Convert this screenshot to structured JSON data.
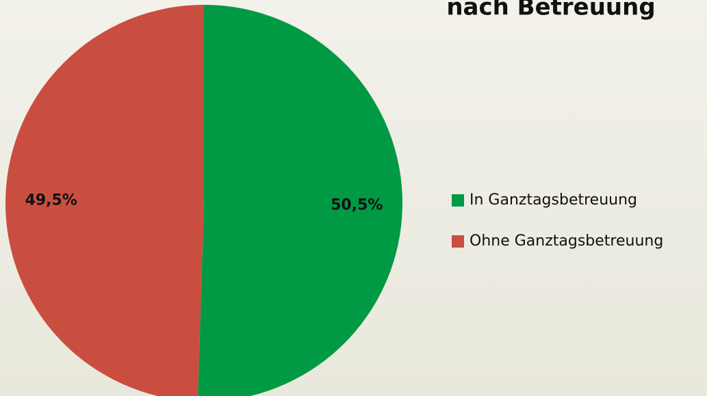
{
  "chart_data": {
    "type": "pie",
    "title": "nach Betreuung",
    "categories": [
      "In Ganztagsbetreuung",
      "Ohne Ganztagsbetreuung"
    ],
    "values": [
      50.5,
      49.5
    ],
    "value_labels": [
      "50,5%",
      "49,5%"
    ],
    "colors": [
      "#009a44",
      "#c94e40"
    ],
    "legend": "right"
  }
}
